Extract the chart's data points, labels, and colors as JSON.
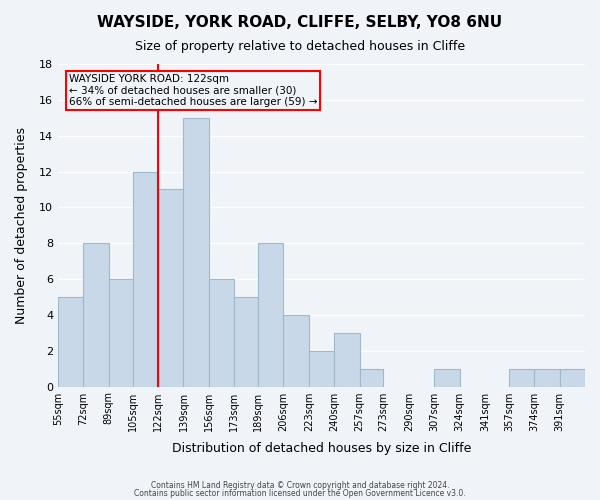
{
  "title": "WAYSIDE, YORK ROAD, CLIFFE, SELBY, YO8 6NU",
  "subtitle": "Size of property relative to detached houses in Cliffe",
  "xlabel": "Distribution of detached houses by size in Cliffe",
  "ylabel": "Number of detached properties",
  "bar_values": [
    5,
    8,
    6,
    12,
    11,
    15,
    6,
    5,
    8,
    4,
    2,
    3,
    1,
    0,
    0,
    1,
    0,
    0,
    1,
    1,
    1
  ],
  "bin_edges": [
    55,
    72,
    89,
    105,
    122,
    139,
    156,
    173,
    189,
    206,
    223,
    240,
    257,
    273,
    290,
    307,
    324,
    341,
    357,
    374,
    391,
    408
  ],
  "x_tick_labels": [
    "55sqm",
    "72sqm",
    "89sqm",
    "105sqm",
    "122sqm",
    "139sqm",
    "156sqm",
    "173sqm",
    "189sqm",
    "206sqm",
    "223sqm",
    "240sqm",
    "257sqm",
    "273sqm",
    "290sqm",
    "307sqm",
    "324sqm",
    "341sqm",
    "357sqm",
    "374sqm",
    "391sqm"
  ],
  "bar_color": "#c8d8e8",
  "bar_edgecolor": "#a0b8cc",
  "vline_x": 122,
  "vline_color": "red",
  "ylim": [
    0,
    18
  ],
  "yticks": [
    0,
    2,
    4,
    6,
    8,
    10,
    12,
    14,
    16,
    18
  ],
  "annotation_title": "WAYSIDE YORK ROAD: 122sqm",
  "annotation_line1": "← 34% of detached houses are smaller (30)",
  "annotation_line2": "66% of semi-detached houses are larger (59) →",
  "footer1": "Contains HM Land Registry data © Crown copyright and database right 2024.",
  "footer2": "Contains public sector information licensed under the Open Government Licence v3.0.",
  "background_color": "#f0f4f8"
}
